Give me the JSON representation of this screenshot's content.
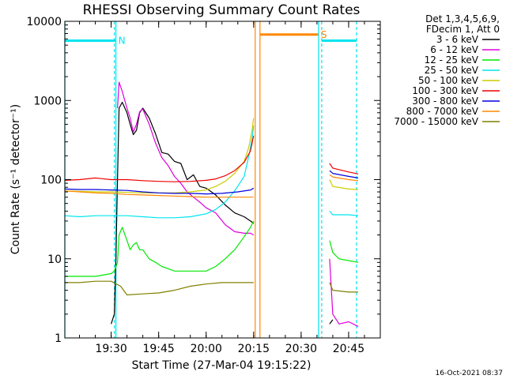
{
  "chart_data": {
    "type": "line",
    "title": "RHESSI Observing Summary Count Rates",
    "xlabel": "Start Time (27-Mar-04 19:15:22)",
    "ylabel": "Count Rate (s⁻¹ detector⁻¹)",
    "y_scale": "log",
    "ylim": [
      1,
      10000
    ],
    "xlim": [
      "19:15:22",
      "20:55:00"
    ],
    "x_ticks": [
      "19:30",
      "19:45",
      "20:00",
      "20:15",
      "20:30",
      "20:45"
    ],
    "y_ticks": [
      "1",
      "10",
      "100",
      "1000",
      "10000"
    ],
    "grid": false,
    "legend_position": "top-right",
    "legend_header": [
      "Det 1,3,4,5,6,9,",
      "FDecim 1, Att 0"
    ],
    "footer_date": "16-Oct-2021 08:37",
    "series": [
      {
        "name": "3 - 6 keV",
        "color": "#000000",
        "segments": [
          [
            [
              "19:30:00",
              1.5
            ],
            [
              "19:31:00",
              2.0
            ],
            [
              "19:31:30",
              10
            ],
            [
              "19:32:00",
              100
            ],
            [
              "19:32:30",
              800
            ],
            [
              "19:33:30",
              950
            ],
            [
              "19:35:00",
              700
            ],
            [
              "19:36:00",
              500
            ],
            [
              "19:37:00",
              370
            ],
            [
              "19:38:00",
              420
            ],
            [
              "19:39:00",
              700
            ],
            [
              "19:40:00",
              800
            ],
            [
              "19:42:00",
              600
            ],
            [
              "19:44:00",
              380
            ],
            [
              "19:46:00",
              220
            ],
            [
              "19:48:00",
              210
            ],
            [
              "19:50:00",
              170
            ],
            [
              "19:52:00",
              160
            ],
            [
              "19:54:00",
              100
            ],
            [
              "19:56:00",
              115
            ],
            [
              "19:58:00",
              82
            ],
            [
              "20:00:00",
              78
            ],
            [
              "20:03:00",
              64
            ],
            [
              "20:06:00",
              48
            ],
            [
              "20:09:00",
              38
            ],
            [
              "20:12:00",
              34
            ],
            [
              "20:14:00",
              30
            ],
            [
              "20:15:00",
              28
            ]
          ],
          [
            [
              "20:39:00",
              1.5
            ],
            [
              "20:40:00",
              1.7
            ]
          ]
        ]
      },
      {
        "name": "6 - 12 keV",
        "color": "#dd00dd",
        "segments": [
          [
            [
              "19:32:00",
              800
            ],
            [
              "19:32:30",
              1700
            ],
            [
              "19:33:30",
              1300
            ],
            [
              "19:35:00",
              800
            ],
            [
              "19:36:00",
              600
            ],
            [
              "19:37:00",
              400
            ],
            [
              "19:38:00",
              500
            ],
            [
              "19:39:00",
              720
            ],
            [
              "19:40:00",
              780
            ],
            [
              "19:42:00",
              500
            ],
            [
              "19:44:00",
              290
            ],
            [
              "19:46:00",
              190
            ],
            [
              "19:48:00",
              150
            ],
            [
              "19:50:00",
              110
            ],
            [
              "19:52:00",
              90
            ],
            [
              "19:54:00",
              70
            ],
            [
              "19:56:00",
              60
            ],
            [
              "19:58:00",
              52
            ],
            [
              "20:00:00",
              44
            ],
            [
              "20:03:00",
              38
            ],
            [
              "20:06:00",
              27
            ],
            [
              "20:09:00",
              22
            ],
            [
              "20:12:00",
              21
            ],
            [
              "20:14:00",
              21
            ],
            [
              "20:15:00",
              20
            ]
          ],
          [
            [
              "20:39:00",
              10
            ],
            [
              "20:40:00",
              2
            ],
            [
              "20:42:00",
              1.5
            ],
            [
              "20:45:00",
              1.6
            ],
            [
              "20:48:00",
              1.4
            ]
          ]
        ]
      },
      {
        "name": "12 - 25 keV",
        "color": "#00e800",
        "segments": [
          [
            [
              "19:15:22",
              6
            ],
            [
              "19:20:00",
              6
            ],
            [
              "19:25:00",
              6
            ],
            [
              "19:28:00",
              6.3
            ],
            [
              "19:30:00",
              6.5
            ],
            [
              "19:31:00",
              7
            ],
            [
              "19:32:00",
              9
            ],
            [
              "19:32:30",
              20
            ],
            [
              "19:33:30",
              25
            ],
            [
              "19:35:00",
              17
            ],
            [
              "19:36:00",
              13
            ],
            [
              "19:37:00",
              15
            ],
            [
              "19:38:00",
              16
            ],
            [
              "19:39:00",
              13
            ],
            [
              "19:40:00",
              13
            ],
            [
              "19:42:00",
              10
            ],
            [
              "19:44:00",
              9
            ],
            [
              "19:46:00",
              8
            ],
            [
              "19:48:00",
              7.5
            ],
            [
              "19:50:00",
              7
            ],
            [
              "19:55:00",
              7
            ],
            [
              "20:00:00",
              7
            ],
            [
              "20:03:00",
              8
            ],
            [
              "20:06:00",
              10
            ],
            [
              "20:09:00",
              13
            ],
            [
              "20:12:00",
              19
            ],
            [
              "20:14:00",
              25
            ],
            [
              "20:15:00",
              30
            ]
          ],
          [
            [
              "20:39:00",
              17
            ],
            [
              "20:40:00",
              12
            ],
            [
              "20:42:00",
              10
            ],
            [
              "20:45:00",
              9.5
            ],
            [
              "20:48:00",
              9
            ]
          ]
        ]
      },
      {
        "name": "25 - 50 keV",
        "color": "#00e5ee",
        "segments": [
          [
            [
              "19:15:22",
              35
            ],
            [
              "19:20:00",
              34
            ],
            [
              "19:25:00",
              35
            ],
            [
              "19:30:00",
              35
            ],
            [
              "19:35:00",
              35
            ],
            [
              "19:40:00",
              34
            ],
            [
              "19:45:00",
              33
            ],
            [
              "19:50:00",
              33
            ],
            [
              "19:55:00",
              34
            ],
            [
              "20:00:00",
              37
            ],
            [
              "20:03:00",
              42
            ],
            [
              "20:06:00",
              52
            ],
            [
              "20:09:00",
              72
            ],
            [
              "20:12:00",
              110
            ],
            [
              "20:13:30",
              200
            ],
            [
              "20:14:30",
              330
            ],
            [
              "20:15:00",
              480
            ]
          ],
          [
            [
              "20:39:00",
              40
            ],
            [
              "20:40:00",
              36
            ],
            [
              "20:45:00",
              36
            ],
            [
              "20:48:00",
              35
            ]
          ]
        ]
      },
      {
        "name": "50 - 100 keV",
        "color": "#cccc00",
        "segments": [
          [
            [
              "19:15:22",
              72
            ],
            [
              "19:20:00",
              71
            ],
            [
              "19:25:00",
              70
            ],
            [
              "19:30:00",
              70
            ],
            [
              "19:35:00",
              69
            ],
            [
              "19:40:00",
              68
            ],
            [
              "19:45:00",
              68
            ],
            [
              "19:50:00",
              68
            ],
            [
              "19:55:00",
              70
            ],
            [
              "20:00:00",
              74
            ],
            [
              "20:03:00",
              82
            ],
            [
              "20:06:00",
              95
            ],
            [
              "20:09:00",
              120
            ],
            [
              "20:12:00",
              170
            ],
            [
              "20:13:30",
              260
            ],
            [
              "20:14:30",
              420
            ],
            [
              "20:15:00",
              600
            ]
          ],
          [
            [
              "20:39:00",
              100
            ],
            [
              "20:40:00",
              82
            ],
            [
              "20:45:00",
              76
            ],
            [
              "20:48:00",
              75
            ]
          ]
        ]
      },
      {
        "name": "100 - 300 keV",
        "color": "#ee0000",
        "segments": [
          [
            [
              "19:15:22",
              98
            ],
            [
              "19:20:00",
              100
            ],
            [
              "19:25:00",
              105
            ],
            [
              "19:30:00",
              100
            ],
            [
              "19:35:00",
              100
            ],
            [
              "19:40:00",
              97
            ],
            [
              "19:45:00",
              95
            ],
            [
              "19:50:00",
              94
            ],
            [
              "19:55:00",
              95
            ],
            [
              "20:00:00",
              98
            ],
            [
              "20:03:00",
              102
            ],
            [
              "20:06:00",
              112
            ],
            [
              "20:09:00",
              130
            ],
            [
              "20:12:00",
              165
            ],
            [
              "20:14:00",
              230
            ],
            [
              "20:15:00",
              360
            ]
          ],
          [
            [
              "20:39:00",
              160
            ],
            [
              "20:40:00",
              140
            ],
            [
              "20:45:00",
              125
            ],
            [
              "20:48:00",
              118
            ]
          ]
        ]
      },
      {
        "name": "300 - 800 keV",
        "color": "#0000dd",
        "segments": [
          [
            [
              "19:15:22",
              76
            ],
            [
              "19:20:00",
              75
            ],
            [
              "19:25:00",
              75
            ],
            [
              "19:30:00",
              74
            ],
            [
              "19:35:00",
              73
            ],
            [
              "19:40:00",
              70
            ],
            [
              "19:45:00",
              68
            ],
            [
              "19:50:00",
              67
            ],
            [
              "19:55:00",
              67
            ],
            [
              "20:00:00",
              66
            ],
            [
              "20:05:00",
              67
            ],
            [
              "20:10:00",
              70
            ],
            [
              "20:14:00",
              74
            ],
            [
              "20:15:00",
              78
            ]
          ],
          [
            [
              "20:39:00",
              130
            ],
            [
              "20:40:00",
              120
            ],
            [
              "20:45:00",
              110
            ],
            [
              "20:48:00",
              105
            ]
          ]
        ]
      },
      {
        "name": "800 - 7000 keV",
        "color": "#ff8800",
        "segments": [
          [
            [
              "19:15:22",
              72
            ],
            [
              "19:20:00",
              70
            ],
            [
              "19:25:00",
              68
            ],
            [
              "19:30:00",
              67
            ],
            [
              "19:35:00",
              65
            ],
            [
              "19:40:00",
              64
            ],
            [
              "19:45:00",
              63
            ],
            [
              "19:50:00",
              62
            ],
            [
              "19:55:00",
              61
            ],
            [
              "20:00:00",
              60
            ],
            [
              "20:05:00",
              60
            ],
            [
              "20:10:00",
              60
            ],
            [
              "20:15:00",
              60
            ]
          ],
          [
            [
              "20:39:00",
              115
            ],
            [
              "20:40:00",
              108
            ],
            [
              "20:45:00",
              100
            ],
            [
              "20:48:00",
              97
            ]
          ]
        ]
      },
      {
        "name": "7000 - 15000 keV",
        "color": "#808000",
        "segments": [
          [
            [
              "19:15:22",
              5
            ],
            [
              "19:20:00",
              5
            ],
            [
              "19:25:00",
              5.2
            ],
            [
              "19:30:00",
              5.2
            ],
            [
              "19:33:00",
              4.5
            ],
            [
              "19:35:00",
              3.5
            ],
            [
              "19:40:00",
              3.6
            ],
            [
              "19:45:00",
              3.7
            ],
            [
              "19:50:00",
              4
            ],
            [
              "19:55:00",
              4.5
            ],
            [
              "20:00:00",
              4.8
            ],
            [
              "20:05:00",
              5
            ],
            [
              "20:10:00",
              5
            ],
            [
              "20:15:00",
              5
            ]
          ],
          [
            [
              "20:39:00",
              5
            ],
            [
              "20:40:00",
              4
            ],
            [
              "20:45:00",
              3.8
            ],
            [
              "20:48:00",
              3.8
            ]
          ]
        ]
      }
    ],
    "flag_bars": [
      {
        "label": "",
        "color": "#00e5ee",
        "start": "19:15:22",
        "end": "19:31:00",
        "y": 5700
      },
      {
        "label": "N",
        "color": "#00e5ee",
        "start": "19:31:00",
        "end": "19:31:30",
        "y": 5700
      },
      {
        "label": "S",
        "color": "#ff8800",
        "start": "20:17:00",
        "end": "20:35:30",
        "y": 6800
      },
      {
        "label": "",
        "color": "#00e5ee",
        "start": "20:36:30",
        "end": "20:47:30",
        "y": 5700
      }
    ],
    "vertical_markers": [
      {
        "color": "#00e5ee",
        "style": "solid",
        "x": "19:15:22"
      },
      {
        "color": "#00e5ee",
        "style": "dashed",
        "x": "19:31:00"
      },
      {
        "color": "#00e5ee",
        "style": "solid",
        "x": "19:31:30"
      },
      {
        "color": "#ff8800",
        "style": "solid",
        "x": "20:15:30"
      },
      {
        "color": "#ff8800",
        "style": "solid",
        "x": "20:17:00"
      },
      {
        "color": "#00e5ee",
        "style": "solid",
        "x": "20:35:30"
      },
      {
        "color": "#00e5ee",
        "style": "dashed",
        "x": "20:36:30"
      },
      {
        "color": "#00e5ee",
        "style": "dashed",
        "x": "20:47:30"
      }
    ]
  }
}
